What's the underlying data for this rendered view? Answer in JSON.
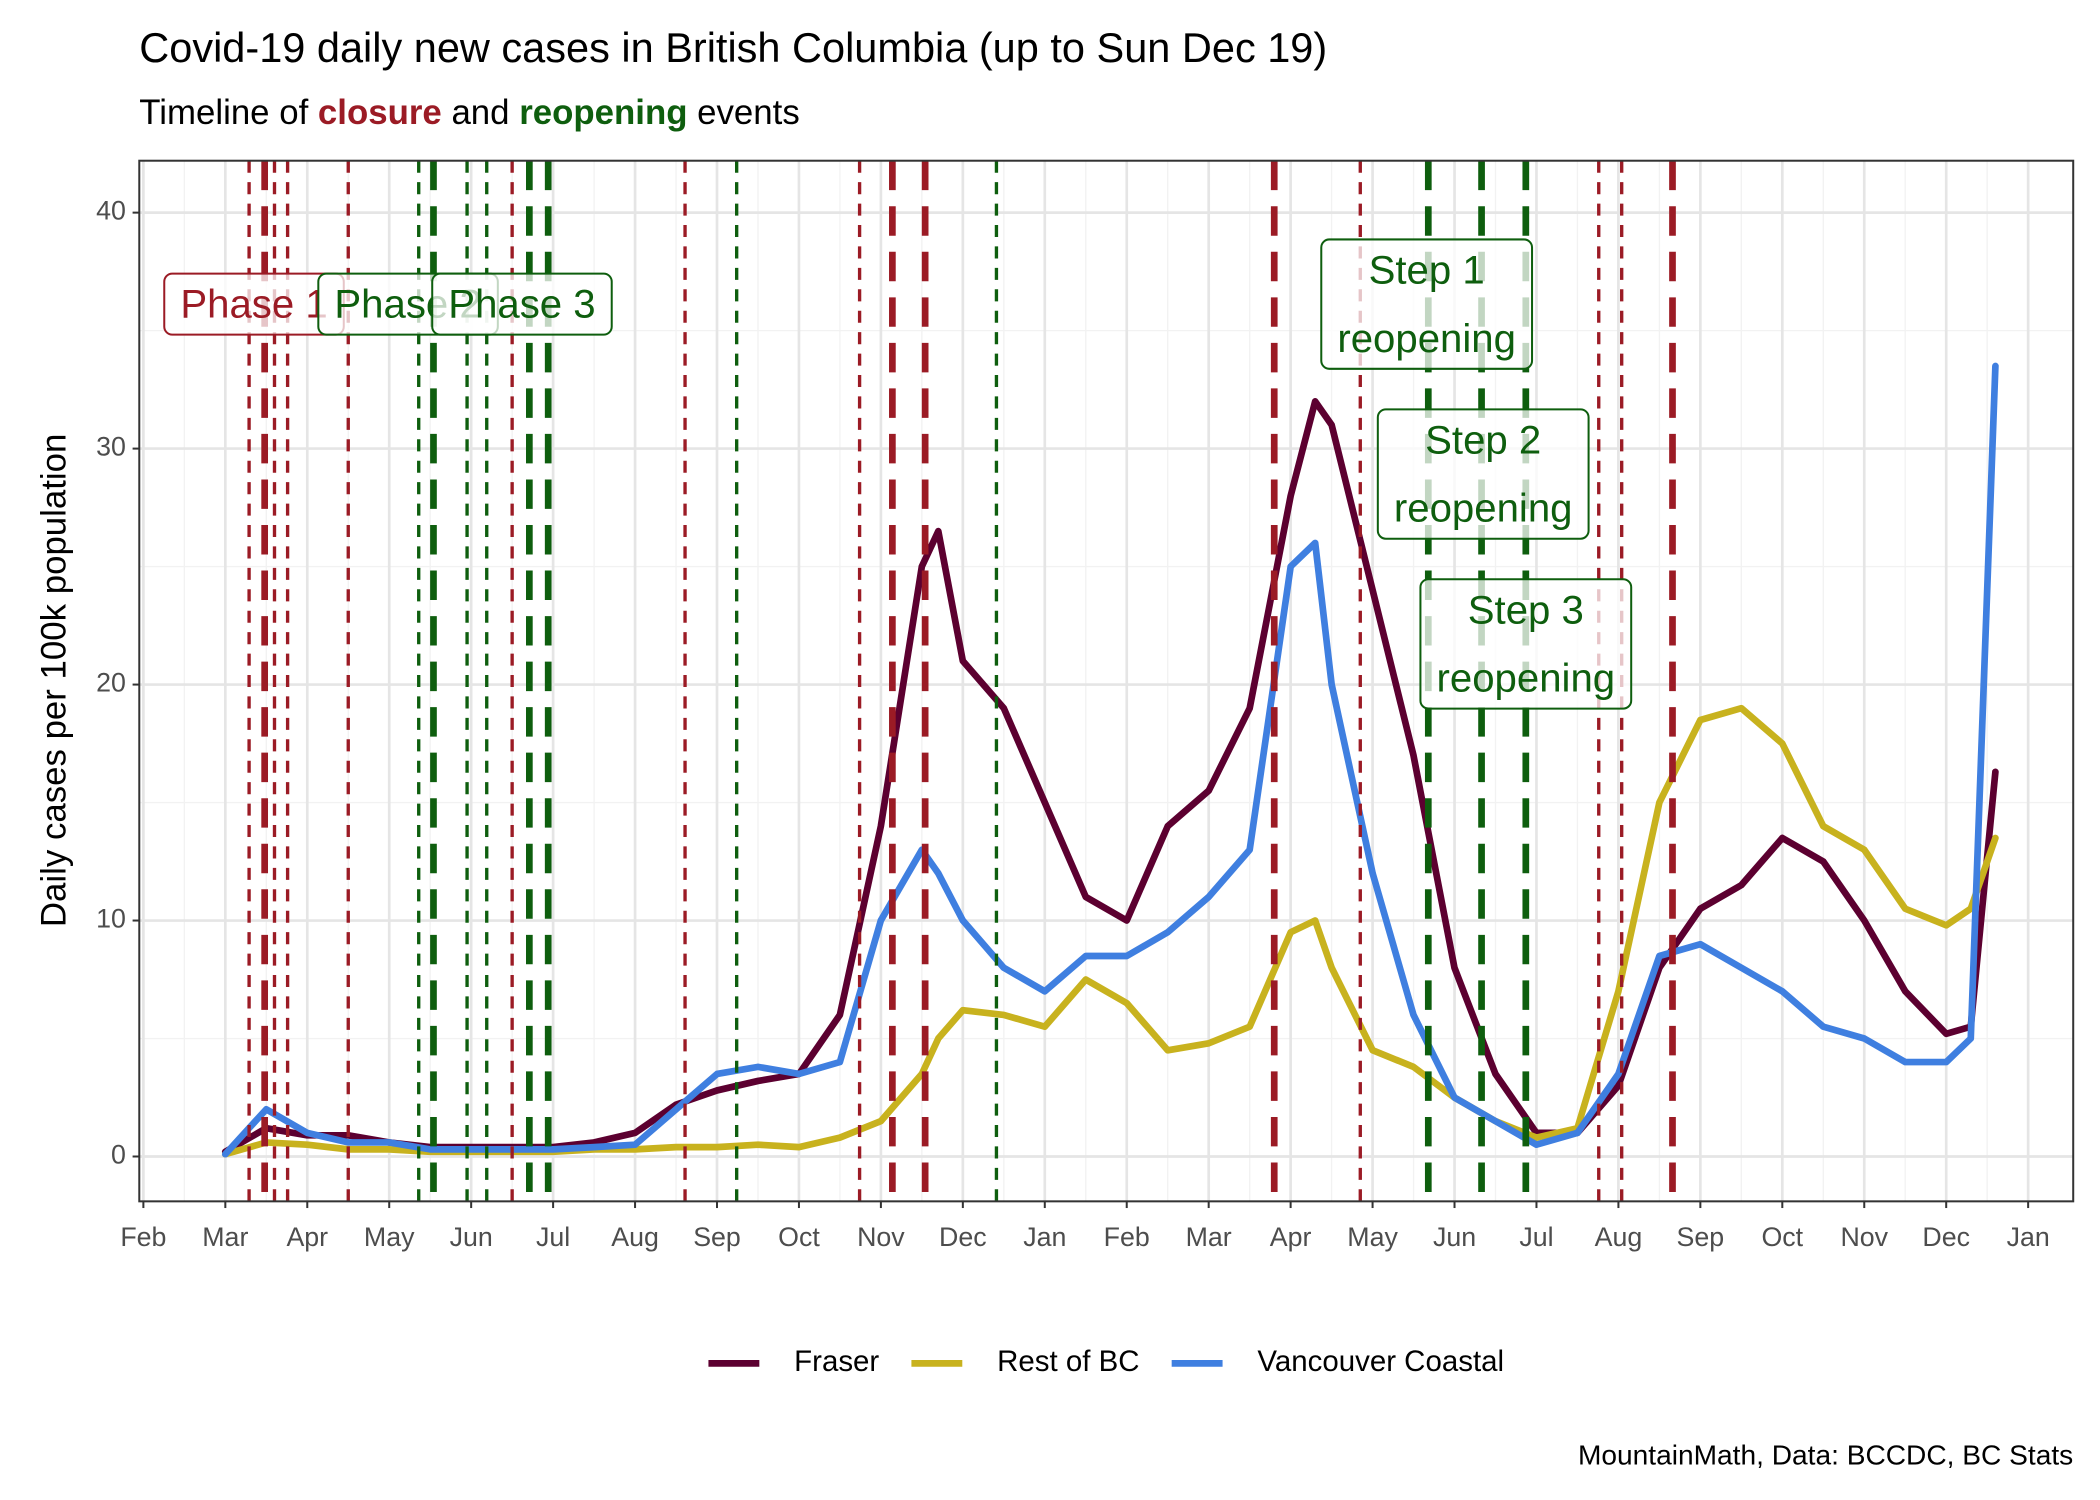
{
  "chart_data": {
    "type": "line",
    "title": "Covid-19 daily new cases in British Columbia (up to Sun Dec 19)",
    "subtitle": [
      {
        "text": "Timeline of "
      },
      {
        "text": "closure",
        "color": "#9b1b25"
      },
      {
        "text": " and "
      },
      {
        "text": "reopening",
        "color": "#0e5e0e"
      },
      {
        "text": " events"
      }
    ],
    "y_label": "Daily cases per 100k population",
    "caption": "MountainMath, Data: BCCDC, BC Stats",
    "xlim": [
      -0.05,
      23.55
    ],
    "xticks": [
      {
        "value": 0,
        "label": "Feb"
      },
      {
        "value": 1,
        "label": "Mar"
      },
      {
        "value": 2,
        "label": "Apr"
      },
      {
        "value": 3,
        "label": "May"
      },
      {
        "value": 4,
        "label": "Jun"
      },
      {
        "value": 5,
        "label": "Jul"
      },
      {
        "value": 6,
        "label": "Aug"
      },
      {
        "value": 7,
        "label": "Sep"
      },
      {
        "value": 8,
        "label": "Oct"
      },
      {
        "value": 9,
        "label": "Nov"
      },
      {
        "value": 10,
        "label": "Dec"
      },
      {
        "value": 11,
        "label": "Jan"
      },
      {
        "value": 12,
        "label": "Feb"
      },
      {
        "value": 13,
        "label": "Mar"
      },
      {
        "value": 14,
        "label": "Apr"
      },
      {
        "value": 15,
        "label": "May"
      },
      {
        "value": 16,
        "label": "Jun"
      },
      {
        "value": 17,
        "label": "Jul"
      },
      {
        "value": 18,
        "label": "Aug"
      },
      {
        "value": 19,
        "label": "Sep"
      },
      {
        "value": 20,
        "label": "Oct"
      },
      {
        "value": 21,
        "label": "Nov"
      },
      {
        "value": 22,
        "label": "Dec"
      },
      {
        "value": 23,
        "label": "Jan"
      }
    ],
    "ylim": [
      -1.9,
      42.2
    ],
    "yticks": [
      0,
      10,
      20,
      30,
      40
    ],
    "grid": true,
    "legend": "bottom",
    "x": [
      1.0,
      1.5,
      2.0,
      2.5,
      3.0,
      3.5,
      4.0,
      4.5,
      5.0,
      5.5,
      6.0,
      6.5,
      7.0,
      7.5,
      8.0,
      8.5,
      9.0,
      9.5,
      9.7,
      10.0,
      10.5,
      11.0,
      11.5,
      12.0,
      12.5,
      13.0,
      13.5,
      14.0,
      14.3,
      14.5,
      15.0,
      15.5,
      16.0,
      16.5,
      17.0,
      17.5,
      18.0,
      18.5,
      19.0,
      19.5,
      20.0,
      20.5,
      21.0,
      21.5,
      22.0,
      22.3,
      22.6
    ],
    "series": [
      {
        "name": "Fraser",
        "color": "#5c0030",
        "values": [
          0.2,
          1.2,
          0.9,
          0.9,
          0.6,
          0.4,
          0.4,
          0.4,
          0.4,
          0.6,
          1.0,
          2.2,
          2.8,
          3.2,
          3.5,
          6,
          14,
          25,
          26.5,
          21,
          19,
          15,
          11,
          10,
          14,
          15.5,
          19,
          28,
          32,
          31,
          24,
          17,
          8,
          3.5,
          1.0,
          1.0,
          3,
          8,
          10.5,
          11.5,
          13.5,
          12.5,
          10,
          7,
          5.2,
          5.5,
          16.3
        ]
      },
      {
        "name": "Rest of BC",
        "color": "#c8b21e",
        "values": [
          0.1,
          0.6,
          0.5,
          0.3,
          0.3,
          0.2,
          0.2,
          0.2,
          0.2,
          0.3,
          0.3,
          0.4,
          0.4,
          0.5,
          0.4,
          0.8,
          1.5,
          3.5,
          5,
          6.2,
          6,
          5.5,
          7.5,
          6.5,
          4.5,
          4.8,
          5.5,
          9.5,
          10,
          8,
          4.5,
          3.8,
          2.5,
          1.5,
          0.8,
          1.2,
          7,
          15,
          18.5,
          19,
          17.5,
          14,
          13,
          10.5,
          9.8,
          10.5,
          13.5
        ]
      },
      {
        "name": "Vancouver Coastal",
        "color": "#3f7fe0",
        "values": [
          0.1,
          2.0,
          1.0,
          0.6,
          0.6,
          0.3,
          0.3,
          0.3,
          0.3,
          0.4,
          0.5,
          2.0,
          3.5,
          3.8,
          3.5,
          4,
          10,
          13,
          12,
          10,
          8,
          7,
          8.5,
          8.5,
          9.5,
          11,
          13,
          25,
          26,
          20,
          12,
          6,
          2.5,
          1.5,
          0.5,
          1.0,
          3.5,
          8.5,
          9,
          8,
          7,
          5.5,
          5,
          4,
          4,
          5,
          33.5
        ]
      }
    ],
    "event_lines": [
      {
        "color": "#9b1b25",
        "dash": "short",
        "x": [
          1.29,
          1.6,
          1.76,
          2.5,
          4.5,
          6.61,
          8.74,
          14.85,
          17.76,
          18.04
        ]
      },
      {
        "color": "#9b1b25",
        "dash": "long",
        "x": [
          1.48,
          9.14,
          9.54,
          13.8,
          18.66
        ]
      },
      {
        "color": "#0e5e0e",
        "dash": "short",
        "x": [
          3.36,
          3.95,
          4.19,
          7.24,
          10.41
        ]
      },
      {
        "color": "#0e5e0e",
        "dash": "long",
        "x": [
          3.54,
          4.71,
          4.94,
          15.68,
          16.33,
          16.87
        ]
      }
    ],
    "annotations": [
      {
        "lines": [
          "Phase 1"
        ],
        "x": 1.35,
        "y": 36,
        "color": "#9b1b25"
      },
      {
        "lines": [
          "Phase 2"
        ],
        "x": 3.23,
        "y": 36,
        "color": "#0e5e0e"
      },
      {
        "lines": [
          "Phase 3"
        ],
        "x": 4.62,
        "y": 36,
        "color": "#0e5e0e"
      },
      {
        "lines": [
          "Step 1",
          "reopening"
        ],
        "x": 15.66,
        "y": 36,
        "color": "#0e5e0e"
      },
      {
        "lines": [
          "Step 2",
          "reopening"
        ],
        "x": 16.35,
        "y": 28.8,
        "color": "#0e5e0e"
      },
      {
        "lines": [
          "Step 3",
          "reopening"
        ],
        "x": 16.87,
        "y": 21.6,
        "color": "#0e5e0e"
      }
    ]
  }
}
